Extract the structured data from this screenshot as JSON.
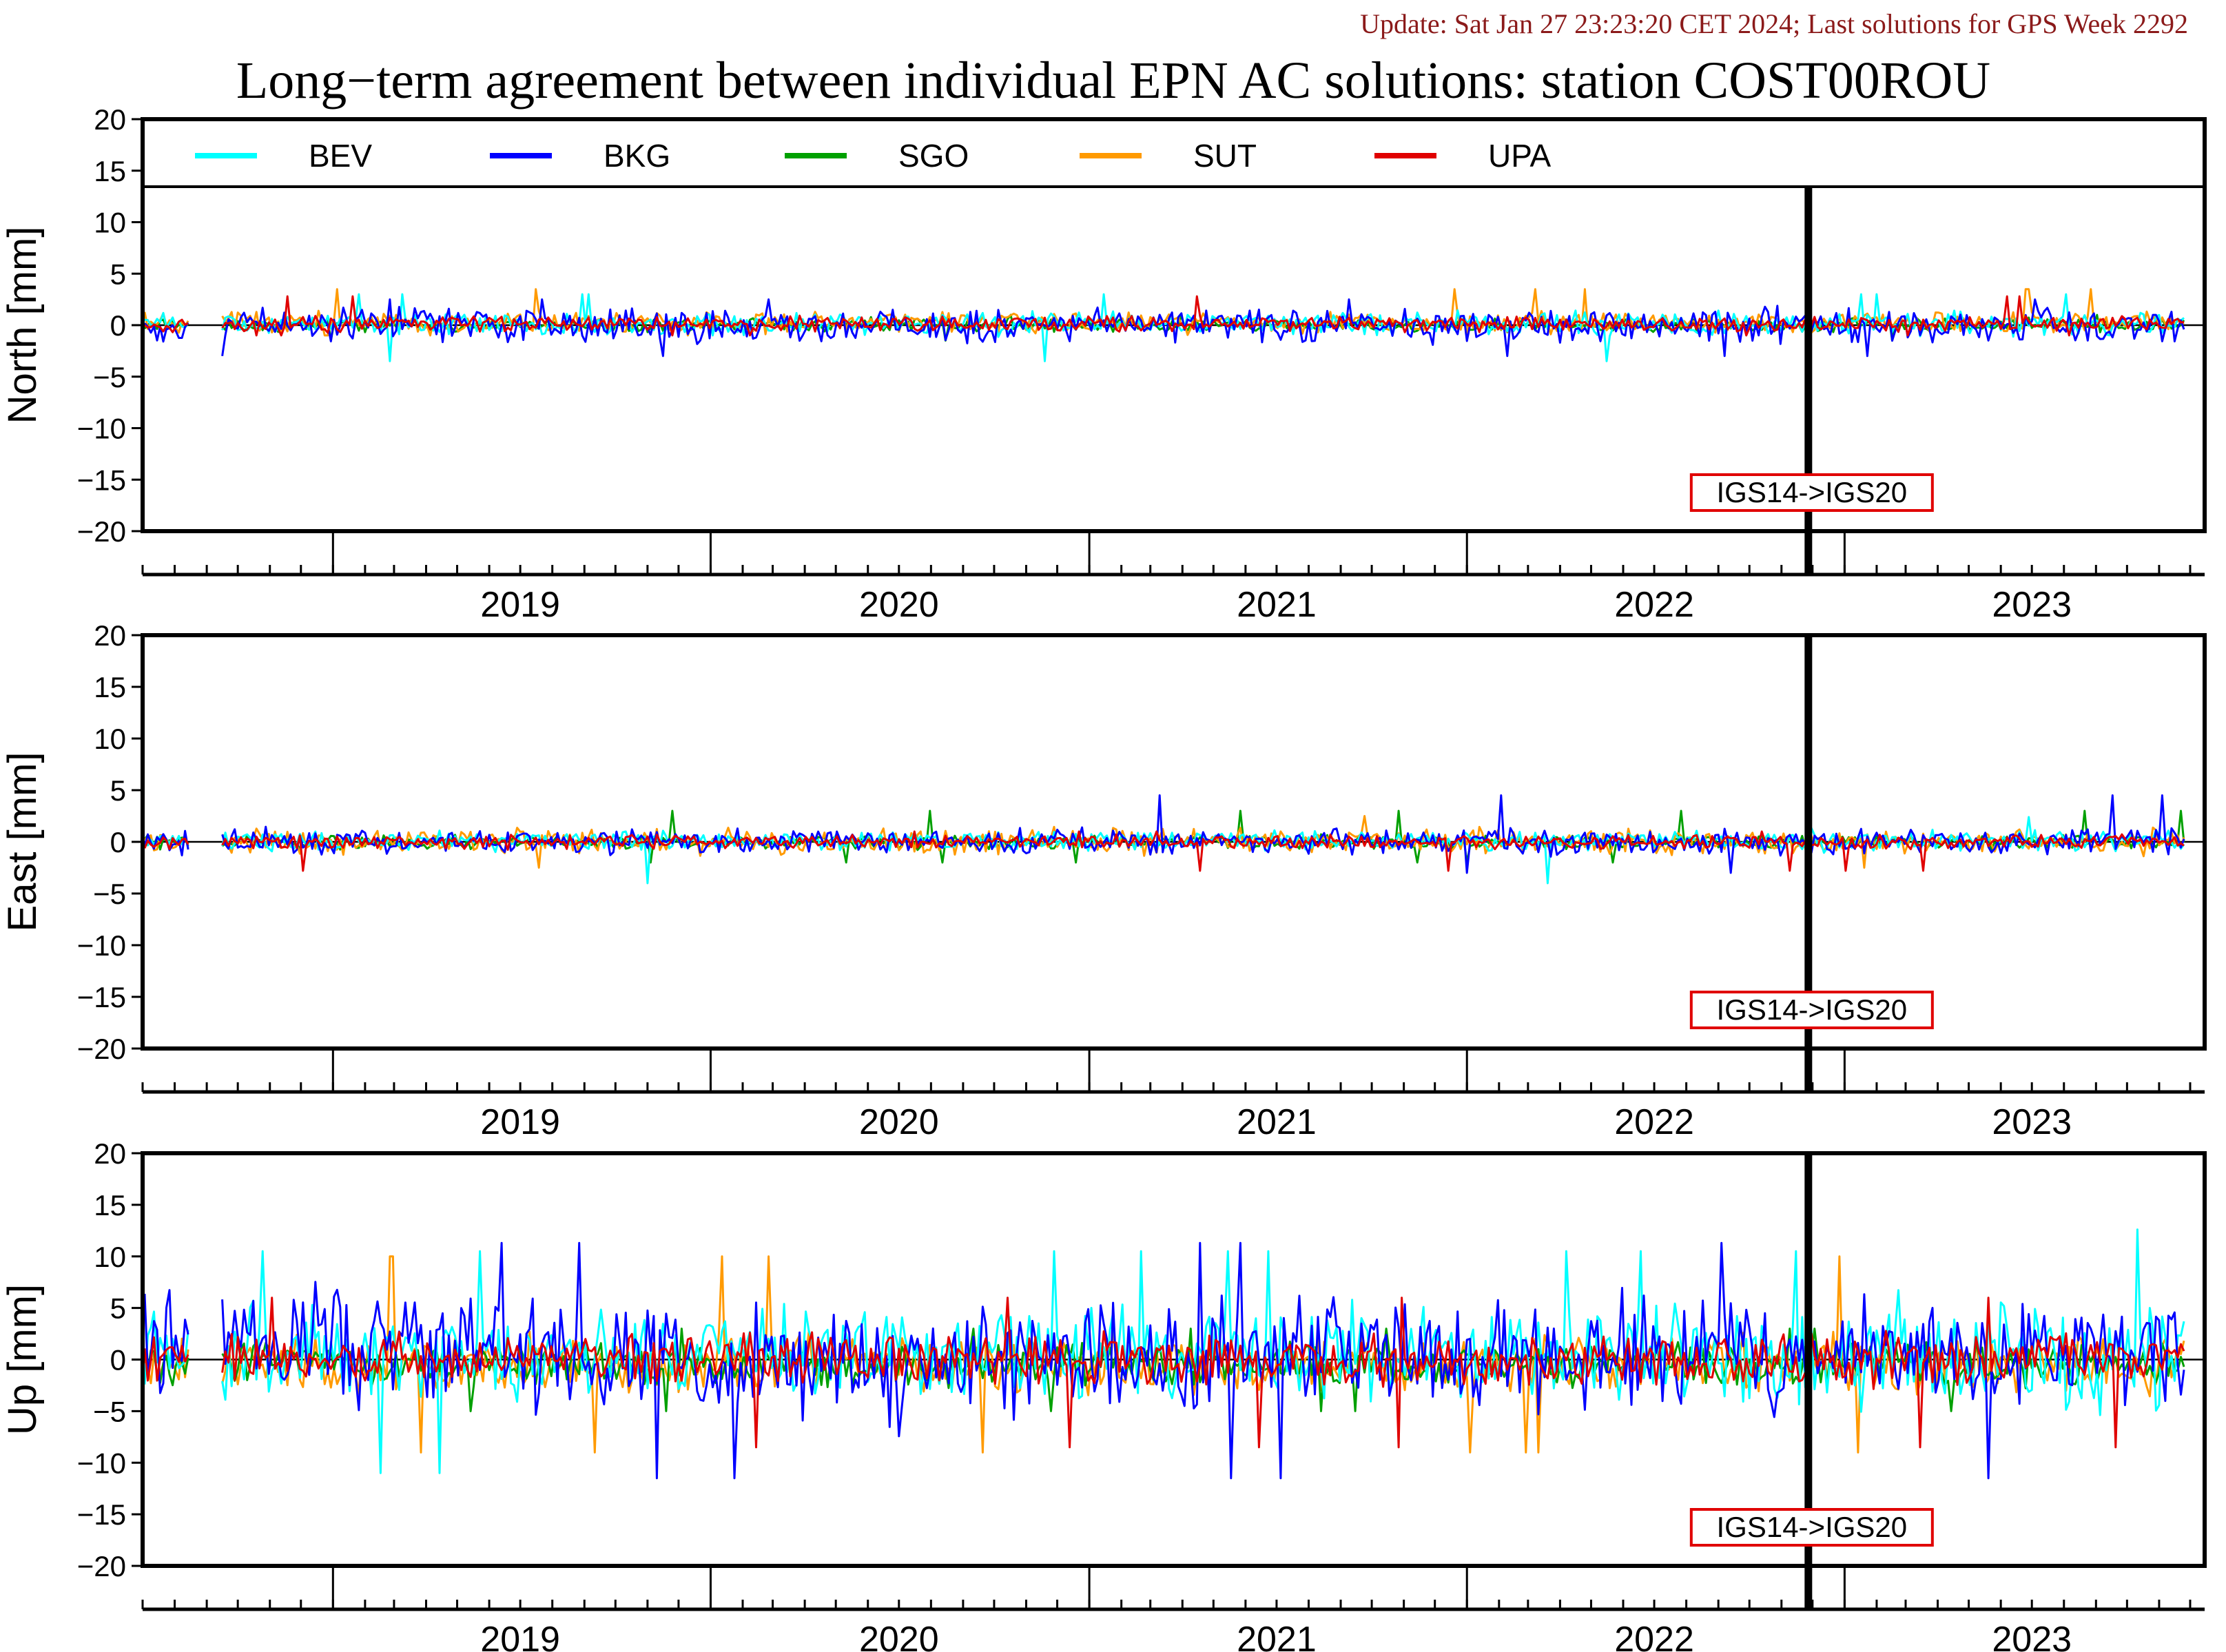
{
  "update_text": "Update: Sat Jan 27 23:23:20 CET 2024; Last solutions for GPS Week 2292",
  "title": "Long−term agreement between individual EPN AC solutions: station COST00ROU",
  "colors": {
    "update_text": "#8b1a1a",
    "BEV": "#00ffff",
    "BKG": "#0000ff",
    "SGO": "#00a000",
    "SUT": "#ff9a00",
    "UPA": "#e00000",
    "annotation_border": "#e00000"
  },
  "legend": [
    {
      "name": "BEV",
      "color": "#00ffff"
    },
    {
      "name": "BKG",
      "color": "#0000ff"
    },
    {
      "name": "SGO",
      "color": "#00a000"
    },
    {
      "name": "SUT",
      "color": "#ff9a00"
    },
    {
      "name": "UPA",
      "color": "#e00000"
    }
  ],
  "chart_data": [
    {
      "type": "line",
      "ylabel": "North [mm]",
      "ylim": [
        -20,
        20
      ],
      "yticks": [
        "20",
        "15",
        "10",
        "5",
        "0",
        "−5",
        "−10",
        "−15",
        "−20"
      ],
      "x_range": [
        "2018-07-01",
        "2023-12-15"
      ],
      "x_tick_labels": [
        "2019",
        "2020",
        "2021",
        "2022",
        "2023"
      ],
      "x_data_gaps": [
        [
          "2018-08-15",
          "2018-09-15"
        ]
      ],
      "legend_position": "top",
      "reference_line": {
        "date": "2022-11-27",
        "label": "IGS14->IGS20"
      },
      "series": [
        {
          "name": "BEV",
          "typical_range_mm": [
            -1.2,
            1.5
          ],
          "extremes_mm": [
            3.0,
            -3.5
          ]
        },
        {
          "name": "BKG",
          "typical_range_mm": [
            -2.0,
            2.0
          ],
          "extremes_mm": [
            2.5,
            -3.0
          ]
        },
        {
          "name": "SGO",
          "typical_range_mm": [
            -0.8,
            0.8
          ],
          "extremes_mm": [
            1.0,
            -1.5
          ]
        },
        {
          "name": "SUT",
          "typical_range_mm": [
            -1.0,
            1.5
          ],
          "extremes_mm": [
            3.5,
            -1.0
          ]
        },
        {
          "name": "UPA",
          "typical_range_mm": [
            -0.8,
            1.0
          ],
          "extremes_mm": [
            2.8,
            -1.0
          ]
        }
      ]
    },
    {
      "type": "line",
      "ylabel": "East [mm]",
      "ylim": [
        -20,
        20
      ],
      "yticks": [
        "20",
        "15",
        "10",
        "5",
        "0",
        "−5",
        "−10",
        "−15",
        "−20"
      ],
      "x_range": [
        "2018-07-01",
        "2023-12-15"
      ],
      "x_tick_labels": [
        "2019",
        "2020",
        "2021",
        "2022",
        "2023"
      ],
      "x_data_gaps": [
        [
          "2018-08-15",
          "2018-09-15"
        ]
      ],
      "reference_line": {
        "date": "2022-11-27",
        "label": "IGS14->IGS20"
      },
      "series": [
        {
          "name": "BEV",
          "typical_range_mm": [
            -1.0,
            1.2
          ],
          "extremes_mm": [
            2.0,
            -4.0
          ]
        },
        {
          "name": "BKG",
          "typical_range_mm": [
            -1.5,
            1.5
          ],
          "extremes_mm": [
            4.5,
            -3.0
          ]
        },
        {
          "name": "SGO",
          "typical_range_mm": [
            -0.8,
            0.8
          ],
          "extremes_mm": [
            3.0,
            -2.0
          ]
        },
        {
          "name": "SUT",
          "typical_range_mm": [
            -1.5,
            1.5
          ],
          "extremes_mm": [
            2.5,
            -2.5
          ]
        },
        {
          "name": "UPA",
          "typical_range_mm": [
            -0.8,
            0.8
          ],
          "extremes_mm": [
            1.0,
            -2.8
          ]
        }
      ]
    },
    {
      "type": "line",
      "ylabel": "Up [mm]",
      "ylim": [
        -20,
        20
      ],
      "yticks": [
        "20",
        "15",
        "10",
        "5",
        "0",
        "−5",
        "−10",
        "−15",
        "−20"
      ],
      "x_range": [
        "2018-07-01",
        "2023-12-15"
      ],
      "x_tick_labels": [
        "2019",
        "2020",
        "2021",
        "2022",
        "2023"
      ],
      "x_data_gaps": [
        [
          "2018-08-15",
          "2018-09-15"
        ]
      ],
      "reference_line": {
        "date": "2022-11-27",
        "label": "IGS14->IGS20"
      },
      "series": [
        {
          "name": "BEV",
          "typical_range_mm": [
            -5,
            6
          ],
          "extremes_mm": [
            10.5,
            -11.0
          ]
        },
        {
          "name": "BKG",
          "typical_range_mm": [
            -6,
            7
          ],
          "extremes_mm": [
            11.3,
            -11.5
          ]
        },
        {
          "name": "SGO",
          "typical_range_mm": [
            -3,
            2
          ],
          "extremes_mm": [
            3.0,
            -5.0
          ]
        },
        {
          "name": "SUT",
          "typical_range_mm": [
            -4,
            3
          ],
          "extremes_mm": [
            10.0,
            -9.0
          ]
        },
        {
          "name": "UPA",
          "typical_range_mm": [
            -3,
            3
          ],
          "extremes_mm": [
            6.0,
            -8.5
          ]
        }
      ]
    }
  ]
}
